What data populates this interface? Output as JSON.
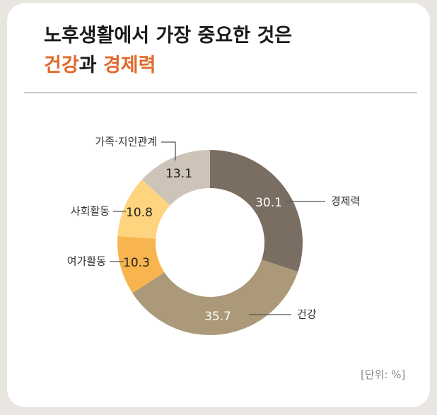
{
  "title": {
    "line1": "노후생활에서 가장 중요한 것은",
    "line2_part1": "건강",
    "line2_mid": "과 ",
    "line2_part2": "경제력"
  },
  "unit_label": "[단위: %]",
  "colors": {
    "economy": "#7a6d61",
    "health": "#ab9979",
    "leisure": "#f8b44e",
    "social": "#fed47f",
    "family": "#cdc3b8",
    "accent": "#e0692a"
  },
  "chart_data": {
    "type": "pie",
    "variant": "donut",
    "title": "노후생활에서 가장 중요한 것은 건강과 경제력",
    "unit": "%",
    "categories": [
      "경제력",
      "건강",
      "여가활동",
      "사회활동",
      "가족·지인관계"
    ],
    "values": [
      30.1,
      35.7,
      10.3,
      10.8,
      13.1
    ],
    "value_labels": [
      "30.1",
      "35.7",
      "10.3",
      "10.8",
      "13.1"
    ],
    "legend": "none"
  }
}
